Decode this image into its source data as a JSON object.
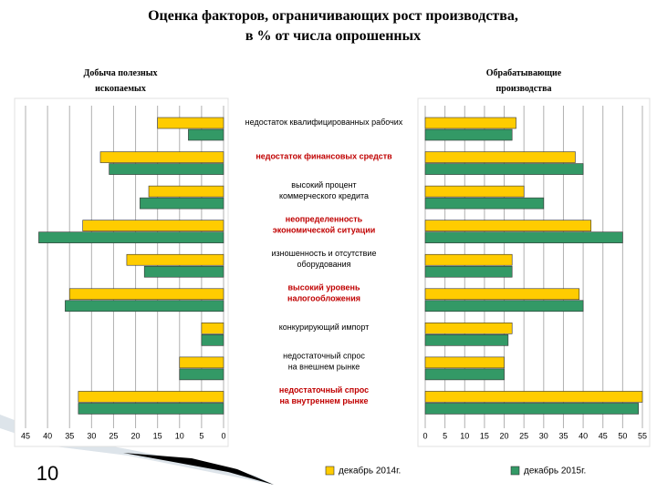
{
  "chart_data": {
    "type": "butterfly-bar",
    "title": "Оценка факторов, ограничивающих рост производства,\nв % от числа опрошенных",
    "page_number": "10",
    "categories": [
      "недостаток квалифицированных рабочих",
      "недостаток финансовых средств",
      "высокий процент\nкоммерческого кредита",
      "неопределенность\nэкономической ситуации",
      "изношенность и отсутствие\nоборудования",
      "высокий уровень\nналогообложения",
      "конкурирующий импорт",
      "недостаточный спрос\nна внешнем рынке",
      "недостаточный спрос\nна внутреннем рынке"
    ],
    "category_colors": [
      "#000000",
      "#c00000",
      "#000000",
      "#c00000",
      "#000000",
      "#c00000",
      "#000000",
      "#000000",
      "#c00000"
    ],
    "series": [
      {
        "name": "декабрь 2014г.",
        "color": "#ffcc00"
      },
      {
        "name": "декабрь 2015г.",
        "color": "#339966"
      }
    ],
    "grid": true,
    "panels": [
      {
        "title": "Добыча полезных\nископаемых",
        "reversed": true,
        "xlim": [
          0,
          45
        ],
        "xticks": [
          0,
          5,
          10,
          15,
          20,
          25,
          30,
          35,
          40,
          45
        ],
        "values": [
          [
            15,
            28,
            17,
            32,
            22,
            35,
            5,
            10,
            33
          ],
          [
            8,
            26,
            19,
            42,
            18,
            36,
            5,
            10,
            33
          ]
        ]
      },
      {
        "title": "Обрабатывающие\nпроизводства",
        "reversed": false,
        "xlim": [
          0,
          55
        ],
        "xticks": [
          0,
          5,
          10,
          15,
          20,
          25,
          30,
          35,
          40,
          45,
          50,
          55
        ],
        "values": [
          [
            23,
            38,
            25,
            42,
            22,
            39,
            22,
            20,
            55
          ],
          [
            22,
            40,
            30,
            50,
            22,
            40,
            21,
            20,
            54
          ]
        ]
      }
    ]
  }
}
